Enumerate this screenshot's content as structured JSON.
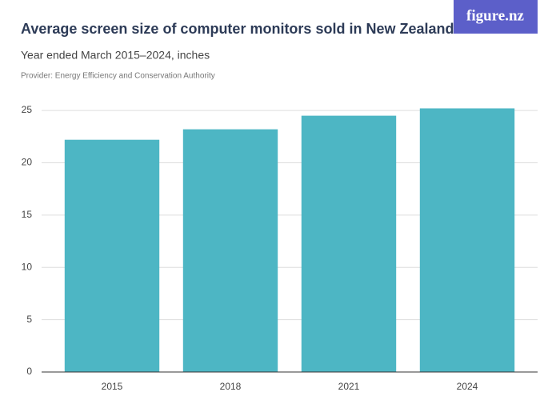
{
  "logo": "figure.nz",
  "chart_data": {
    "type": "bar",
    "title": "Average screen size of computer monitors sold in New Zealand",
    "subtitle": "Year ended March 2015–2024, inches",
    "provider": "Provider: Energy Efficiency and Conservation Authority",
    "categories": [
      "2015",
      "2018",
      "2021",
      "2024"
    ],
    "values": [
      22.2,
      23.2,
      24.5,
      25.2
    ],
    "color": "#4db6c4",
    "ylim": [
      0,
      26
    ],
    "yticks": [
      0,
      5,
      10,
      15,
      20,
      25
    ],
    "grid": true
  }
}
